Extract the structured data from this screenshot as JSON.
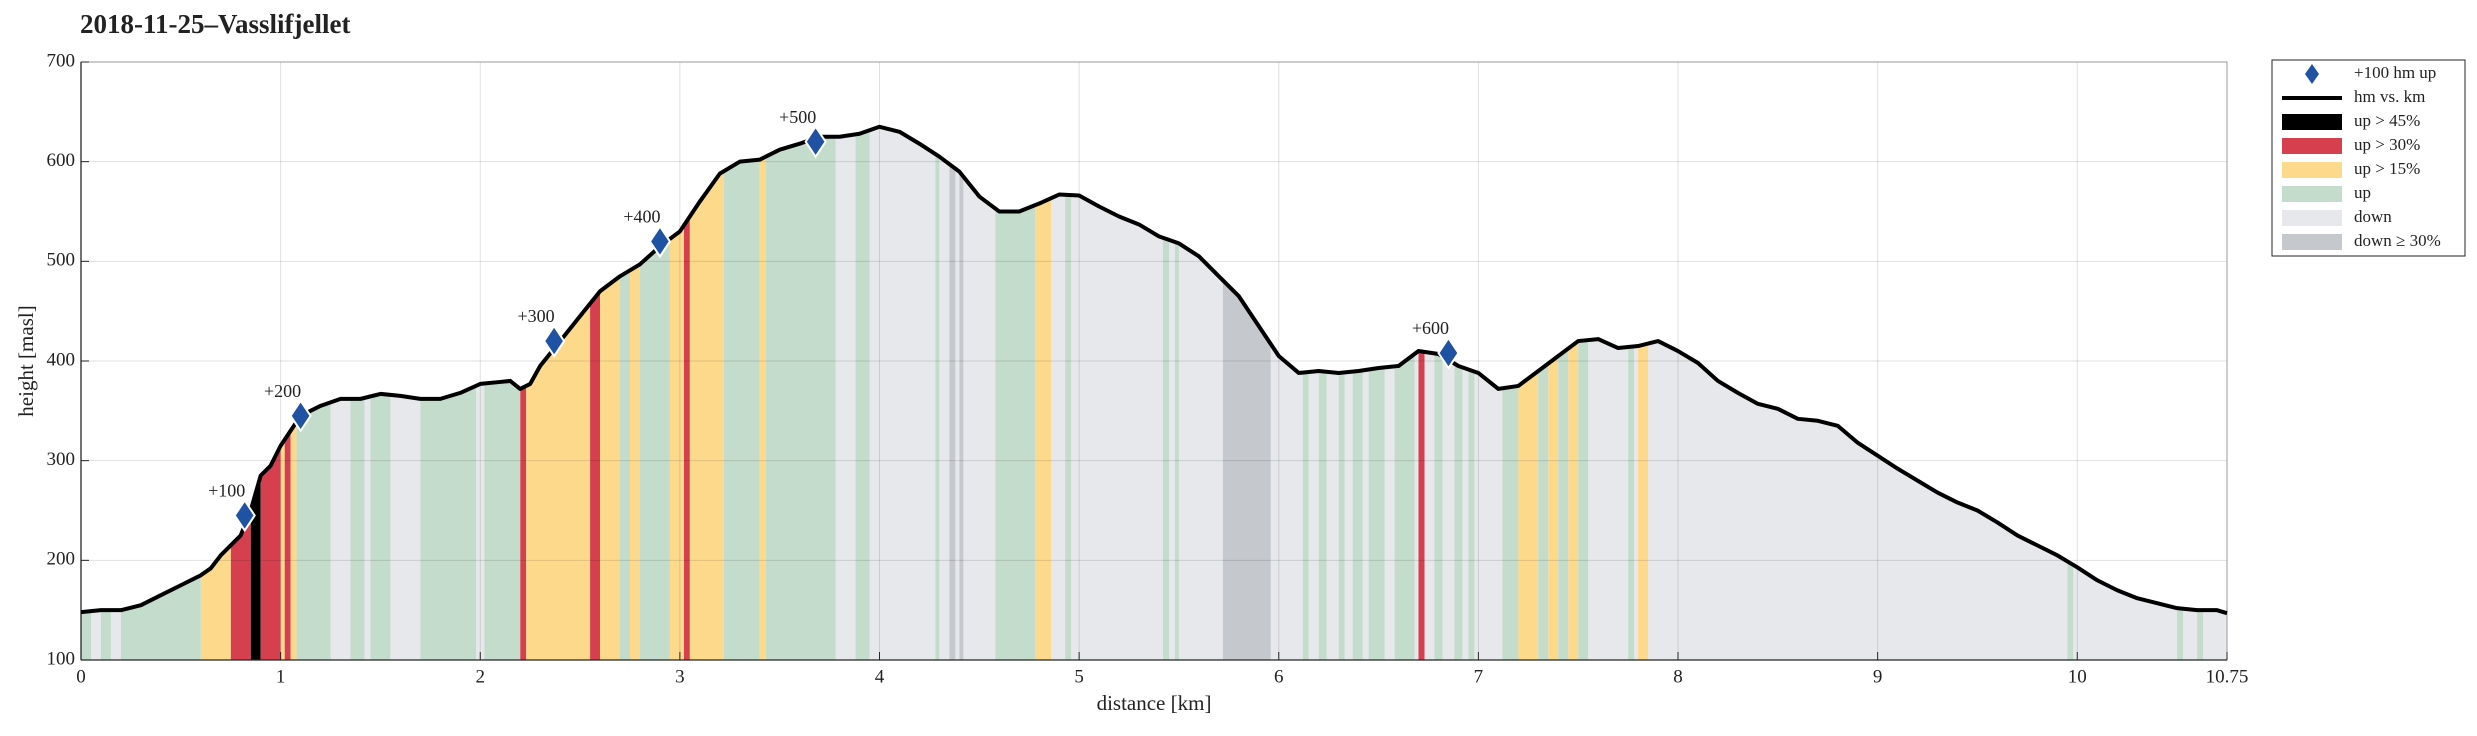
{
  "chart_data": {
    "type": "elevation-profile",
    "title": "2018-11-25–Vasslifjellet",
    "xlabel": "distance [km]",
    "ylabel": "height [masl]",
    "xlim": [
      0,
      10.75
    ],
    "ylim": [
      100,
      700
    ],
    "xticks": [
      0,
      1,
      2,
      3,
      4,
      5,
      6,
      7,
      8,
      9,
      10,
      10.75
    ],
    "yticks": [
      100,
      200,
      300,
      400,
      500,
      600,
      700
    ],
    "grid": true,
    "legend": "outside-top-right",
    "series": [
      {
        "name": "+100 hm up",
        "color": "#1f52a3",
        "marker": "diamond",
        "x": [
          0.82,
          1.1,
          2.37,
          2.9,
          3.68,
          6.85
        ],
        "values": [
          245,
          345,
          420,
          520,
          620,
          408
        ],
        "labels": [
          "+100",
          "+200",
          "+300",
          "+400",
          "+500",
          "+600"
        ]
      },
      {
        "name": "hm vs. km",
        "color": "#000000",
        "x": [
          0,
          0.1,
          0.2,
          0.3,
          0.4,
          0.5,
          0.6,
          0.65,
          0.7,
          0.8,
          0.85,
          0.9,
          0.95,
          1.0,
          1.05,
          1.1,
          1.2,
          1.3,
          1.4,
          1.5,
          1.6,
          1.7,
          1.8,
          1.9,
          2.0,
          2.1,
          2.15,
          2.2,
          2.25,
          2.3,
          2.4,
          2.5,
          2.6,
          2.7,
          2.8,
          2.9,
          3.0,
          3.1,
          3.2,
          3.3,
          3.4,
          3.5,
          3.6,
          3.7,
          3.8,
          3.9,
          4.0,
          4.1,
          4.2,
          4.3,
          4.4,
          4.5,
          4.6,
          4.7,
          4.8,
          4.9,
          5.0,
          5.1,
          5.2,
          5.3,
          5.4,
          5.5,
          5.6,
          5.7,
          5.8,
          5.9,
          6.0,
          6.1,
          6.2,
          6.3,
          6.4,
          6.5,
          6.6,
          6.7,
          6.8,
          6.9,
          7.0,
          7.1,
          7.2,
          7.3,
          7.4,
          7.5,
          7.6,
          7.7,
          7.8,
          7.9,
          8.0,
          8.1,
          8.2,
          8.3,
          8.4,
          8.5,
          8.6,
          8.7,
          8.8,
          8.9,
          9.0,
          9.1,
          9.2,
          9.3,
          9.4,
          9.5,
          9.6,
          9.7,
          9.8,
          9.9,
          10.0,
          10.1,
          10.2,
          10.3,
          10.4,
          10.5,
          10.6,
          10.7,
          10.75
        ],
        "values": [
          148,
          150,
          150,
          155,
          165,
          175,
          185,
          192,
          205,
          225,
          250,
          285,
          295,
          315,
          330,
          345,
          355,
          362,
          362,
          367,
          365,
          362,
          362,
          368,
          377,
          379,
          380,
          372,
          377,
          395,
          420,
          445,
          470,
          485,
          497,
          515,
          530,
          560,
          588,
          600,
          602,
          612,
          618,
          625,
          625,
          628,
          635,
          630,
          618,
          605,
          590,
          565,
          550,
          550,
          558,
          567,
          566,
          555,
          545,
          537,
          525,
          518,
          505,
          485,
          465,
          435,
          405,
          388,
          390,
          388,
          390,
          393,
          395,
          410,
          407,
          395,
          388,
          372,
          375,
          390,
          405,
          420,
          422,
          413,
          415,
          420,
          410,
          398,
          380,
          368,
          357,
          352,
          342,
          340,
          335,
          318,
          305,
          292,
          280,
          268,
          258,
          250,
          238,
          225,
          215,
          205,
          193,
          180,
          170,
          162,
          157,
          152,
          150,
          150,
          147
        ]
      }
    ],
    "bands": [
      {
        "name": "up > 45%",
        "color": "#000000",
        "ranges": [
          [
            0.85,
            0.9
          ]
        ]
      },
      {
        "name": "up > 30%",
        "color": "#d6404e",
        "ranges": [
          [
            0.75,
            0.85
          ],
          [
            0.9,
            1.0
          ],
          [
            1.02,
            1.05
          ],
          [
            2.2,
            2.23
          ],
          [
            2.55,
            2.6
          ],
          [
            3.02,
            3.05
          ],
          [
            6.7,
            6.73
          ]
        ]
      },
      {
        "name": "up > 15%",
        "color": "#fdd98c",
        "ranges": [
          [
            0.6,
            0.75
          ],
          [
            1.0,
            1.02
          ],
          [
            1.05,
            1.08
          ],
          [
            2.23,
            2.55
          ],
          [
            2.6,
            2.7
          ],
          [
            2.75,
            2.8
          ],
          [
            2.95,
            3.02
          ],
          [
            3.05,
            3.22
          ],
          [
            3.4,
            3.43
          ],
          [
            4.78,
            4.86
          ],
          [
            7.2,
            7.3
          ],
          [
            7.35,
            7.4
          ],
          [
            7.45,
            7.5
          ],
          [
            7.8,
            7.85
          ]
        ]
      },
      {
        "name": "up",
        "color": "#c3dccb",
        "ranges": [
          [
            0,
            0.05
          ],
          [
            0.1,
            0.15
          ],
          [
            0.2,
            0.6
          ],
          [
            1.08,
            1.25
          ],
          [
            1.35,
            1.42
          ],
          [
            1.45,
            1.55
          ],
          [
            1.7,
            1.98
          ],
          [
            2.02,
            2.2
          ],
          [
            2.7,
            2.75
          ],
          [
            2.8,
            2.95
          ],
          [
            3.22,
            3.4
          ],
          [
            3.43,
            3.78
          ],
          [
            3.88,
            3.95
          ],
          [
            4.28,
            4.3
          ],
          [
            4.58,
            4.78
          ],
          [
            4.93,
            4.96
          ],
          [
            5.42,
            5.45
          ],
          [
            5.48,
            5.5
          ],
          [
            6.12,
            6.15
          ],
          [
            6.2,
            6.24
          ],
          [
            6.3,
            6.33
          ],
          [
            6.37,
            6.42
          ],
          [
            6.45,
            6.53
          ],
          [
            6.58,
            6.68
          ],
          [
            6.78,
            6.82
          ],
          [
            6.88,
            6.92
          ],
          [
            6.95,
            6.98
          ],
          [
            7.12,
            7.2
          ],
          [
            7.3,
            7.35
          ],
          [
            7.4,
            7.45
          ],
          [
            7.5,
            7.55
          ],
          [
            7.75,
            7.78
          ],
          [
            9.95,
            9.98
          ],
          [
            10.5,
            10.53
          ],
          [
            10.6,
            10.63
          ]
        ]
      },
      {
        "name": "down",
        "color": "#e6e8eb",
        "ranges": [
          [
            0.05,
            0.1
          ],
          [
            0.15,
            0.2
          ],
          [
            1.25,
            1.35
          ],
          [
            1.42,
            1.45
          ],
          [
            1.55,
            1.7
          ],
          [
            1.98,
            2.02
          ],
          [
            3.78,
            3.88
          ],
          [
            3.95,
            4.28
          ],
          [
            4.3,
            4.35
          ],
          [
            4.38,
            4.4
          ],
          [
            4.42,
            4.58
          ],
          [
            4.86,
            4.93
          ],
          [
            4.96,
            5.42
          ],
          [
            5.45,
            5.48
          ],
          [
            5.5,
            5.72
          ],
          [
            5.96,
            6.12
          ],
          [
            6.15,
            6.2
          ],
          [
            6.24,
            6.3
          ],
          [
            6.33,
            6.37
          ],
          [
            6.42,
            6.45
          ],
          [
            6.53,
            6.58
          ],
          [
            6.68,
            6.7
          ],
          [
            6.73,
            6.78
          ],
          [
            6.82,
            6.88
          ],
          [
            6.92,
            6.95
          ],
          [
            6.98,
            7.12
          ],
          [
            7.55,
            7.75
          ],
          [
            7.78,
            7.8
          ],
          [
            7.85,
            9.95
          ],
          [
            9.98,
            10.5
          ],
          [
            10.53,
            10.6
          ],
          [
            10.63,
            10.75
          ]
        ]
      },
      {
        "name": "down ≥ 30%",
        "color": "#c5c8cd",
        "ranges": [
          [
            4.35,
            4.38
          ],
          [
            4.4,
            4.42
          ],
          [
            5.72,
            5.96
          ]
        ]
      }
    ]
  }
}
